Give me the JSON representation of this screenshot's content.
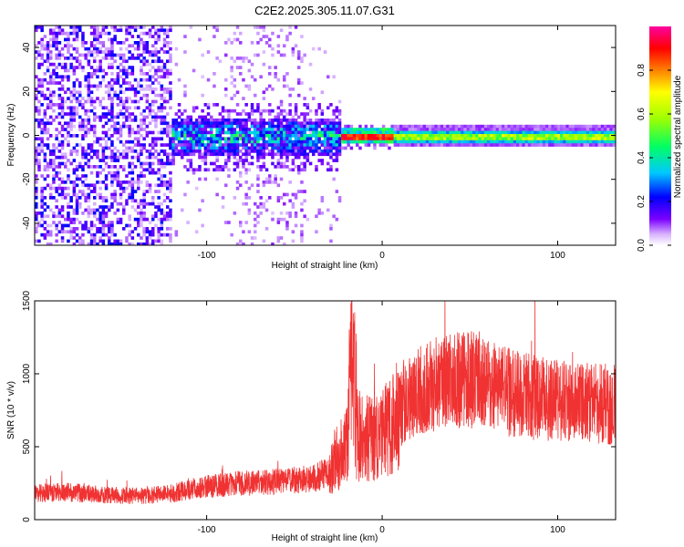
{
  "figure": {
    "title": "C2E2.2025.305.11.07.G31"
  },
  "chart_data": [
    {
      "type": "heatmap",
      "name": "spectrogram",
      "xlabel": "Height of straight line (km)",
      "ylabel": "Frequency (Hz)",
      "xlim": [
        -198,
        133
      ],
      "ylim": [
        -50,
        50
      ],
      "xticks": [
        -100,
        0,
        100
      ],
      "xtick_labels": [
        "-100",
        "0",
        "100"
      ],
      "yticks": [
        -40,
        -20,
        0,
        20,
        40
      ],
      "ytick_labels": [
        "-40",
        "-20",
        "0",
        "20",
        "40"
      ],
      "colorbar": {
        "label": "Normalized spectral amplitude",
        "range": [
          0,
          1
        ],
        "ticks": [
          0.0,
          0.2,
          0.4,
          0.6,
          0.8
        ],
        "tick_labels": [
          "0.0",
          "0.2",
          "0.4",
          "0.6",
          "0.8"
        ],
        "colormap": [
          "#ffffff",
          "#d9b3ff",
          "#7a00ff",
          "#0000ff",
          "#00c8ff",
          "#00ff64",
          "#a0ff00",
          "#ffff00",
          "#ff8000",
          "#ff0000",
          "#ff00a0"
        ]
      },
      "features": [
        {
          "region": "broadband noise",
          "height_range_km": [
            -198,
            -120
          ],
          "freq_spread_hz": 50,
          "amplitude": 0.18
        },
        {
          "region": "dense band",
          "height_range_km": [
            -122,
            -25
          ],
          "freq_spread_hz": 8,
          "amplitude": 0.4
        },
        {
          "region": "narrow line peak",
          "height_range_km": [
            -25,
            5
          ],
          "freq_center_hz": 0,
          "amplitude": 0.95
        },
        {
          "region": "narrow line",
          "height_range_km": [
            5,
            133
          ],
          "freq_spread_hz": 2,
          "amplitude": 0.55
        }
      ]
    },
    {
      "type": "line",
      "name": "snr",
      "xlabel": "Height of straight line (km)",
      "ylabel": "SNR (10 * v/v)",
      "xlim": [
        -198,
        133
      ],
      "ylim": [
        0,
        1500
      ],
      "xticks": [
        -100,
        0,
        100
      ],
      "xtick_labels": [
        "-100",
        "0",
        "100"
      ],
      "yticks": [
        0,
        500,
        1000,
        1500
      ],
      "ytick_labels": [
        "0",
        "500",
        "1000",
        "1500"
      ],
      "color": "#f03232",
      "series": [
        {
          "name": "SNR",
          "x": [
            -198,
            -180,
            -160,
            -140,
            -120,
            -100,
            -80,
            -60,
            -40,
            -30,
            -25,
            -20,
            -17,
            -15,
            -12,
            -5,
            0,
            5,
            10,
            20,
            30,
            40,
            55,
            70,
            90,
            110,
            133
          ],
          "y": [
            180,
            190,
            170,
            160,
            180,
            230,
            250,
            260,
            280,
            320,
            420,
            520,
            1300,
            600,
            560,
            540,
            580,
            640,
            760,
            880,
            930,
            950,
            960,
            880,
            830,
            800,
            790
          ]
        }
      ]
    }
  ]
}
